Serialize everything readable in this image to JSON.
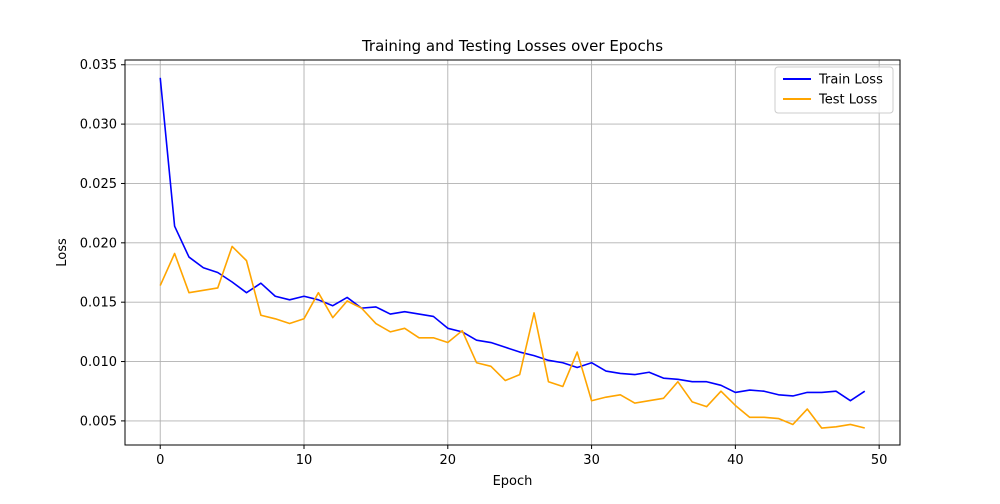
{
  "chart_data": {
    "type": "line",
    "title": "Training and Testing Losses over Epochs",
    "xlabel": "Epoch",
    "ylabel": "Loss",
    "xlim": [
      -2.45,
      51.45
    ],
    "ylim": [
      0.00297,
      0.0354
    ],
    "xticks": [
      0,
      10,
      20,
      30,
      40,
      50
    ],
    "yticks": [
      0.005,
      0.01,
      0.015,
      0.02,
      0.025,
      0.03,
      0.035
    ],
    "ytick_labels": [
      "0.005",
      "0.010",
      "0.015",
      "0.020",
      "0.025",
      "0.030",
      "0.035"
    ],
    "grid": true,
    "legend_position": "top-right",
    "x": [
      0,
      1,
      2,
      3,
      4,
      5,
      6,
      7,
      8,
      9,
      10,
      11,
      12,
      13,
      14,
      15,
      16,
      17,
      18,
      19,
      20,
      21,
      22,
      23,
      24,
      25,
      26,
      27,
      28,
      29,
      30,
      31,
      32,
      33,
      34,
      35,
      36,
      37,
      38,
      39,
      40,
      41,
      42,
      43,
      44,
      45,
      46,
      47,
      48,
      49
    ],
    "series": [
      {
        "name": "Train Loss",
        "color": "#0000ff",
        "values": [
          0.0339,
          0.0214,
          0.0188,
          0.0179,
          0.0175,
          0.0167,
          0.0158,
          0.0166,
          0.0155,
          0.0152,
          0.0155,
          0.0152,
          0.0147,
          0.0154,
          0.0145,
          0.0146,
          0.014,
          0.0142,
          0.014,
          0.0138,
          0.0128,
          0.0125,
          0.0118,
          0.0116,
          0.0112,
          0.0108,
          0.0105,
          0.0101,
          0.0099,
          0.0095,
          0.0099,
          0.0092,
          0.009,
          0.0089,
          0.0091,
          0.0086,
          0.0085,
          0.0083,
          0.0083,
          0.008,
          0.0074,
          0.0076,
          0.0075,
          0.0072,
          0.0071,
          0.0074,
          0.0074,
          0.0075,
          0.0067,
          0.0075
        ]
      },
      {
        "name": "Test Loss",
        "color": "#ffa500",
        "values": [
          0.0164,
          0.0191,
          0.0158,
          0.016,
          0.0162,
          0.0197,
          0.0185,
          0.0139,
          0.0136,
          0.0132,
          0.0136,
          0.0158,
          0.0137,
          0.0151,
          0.0145,
          0.0132,
          0.0125,
          0.0128,
          0.012,
          0.012,
          0.0116,
          0.0126,
          0.0099,
          0.0096,
          0.0084,
          0.0089,
          0.0141,
          0.0083,
          0.0079,
          0.0108,
          0.0067,
          0.007,
          0.0072,
          0.0065,
          0.0067,
          0.0069,
          0.0083,
          0.0066,
          0.0062,
          0.0075,
          0.0063,
          0.0053,
          0.0053,
          0.0052,
          0.0047,
          0.006,
          0.0044,
          0.0045,
          0.0047,
          0.0044
        ]
      }
    ]
  }
}
